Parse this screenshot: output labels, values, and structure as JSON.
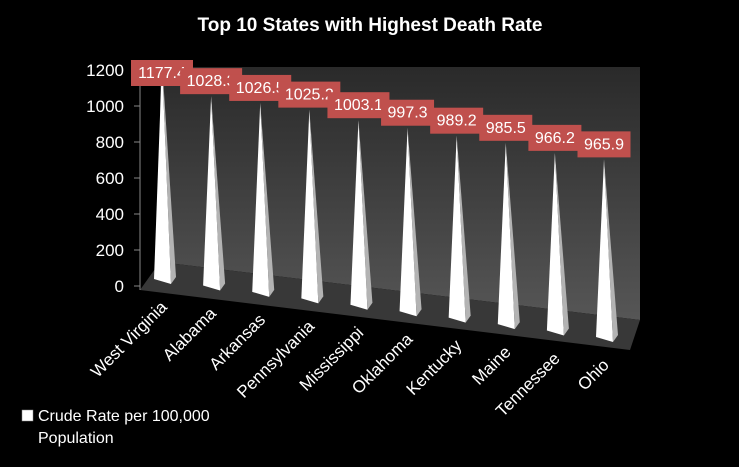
{
  "chart_data": {
    "type": "bar",
    "title": "Top 10 States with Highest Death Rate",
    "categories": [
      "West Virginia",
      "Alabama",
      "Arkansas",
      "Pennsylvania",
      "Mississippi",
      "Oklahoma",
      "Kentucky",
      "Maine",
      "Tennessee",
      "Ohio"
    ],
    "series": [
      {
        "name": "Crude Rate per 100,000 Population",
        "values": [
          1177.4,
          1028.3,
          1026.5,
          1025.2,
          1003.1,
          997.3,
          989.2,
          985.5,
          966.2,
          965.9
        ],
        "labels": [
          "1177.4",
          "1028.3",
          "1026.5",
          "1025.2",
          "1003.1",
          "997.3",
          "989.2",
          "985.5",
          "966.2",
          "965.9"
        ]
      }
    ],
    "y_ticks": [
      "0",
      "200",
      "400",
      "600",
      "800",
      "1000",
      "1200"
    ],
    "ylim": [
      0,
      1200
    ],
    "grid": false,
    "legend_position": "bottom-left",
    "shape": "3d-cone",
    "colors": {
      "background": "#000000",
      "wall": "#484848",
      "floor": "#383838",
      "bar_face": "#ffffff",
      "bar_shade": "#b3b3b3",
      "label_bg": "#c0504d",
      "text": "#ffffff"
    }
  }
}
